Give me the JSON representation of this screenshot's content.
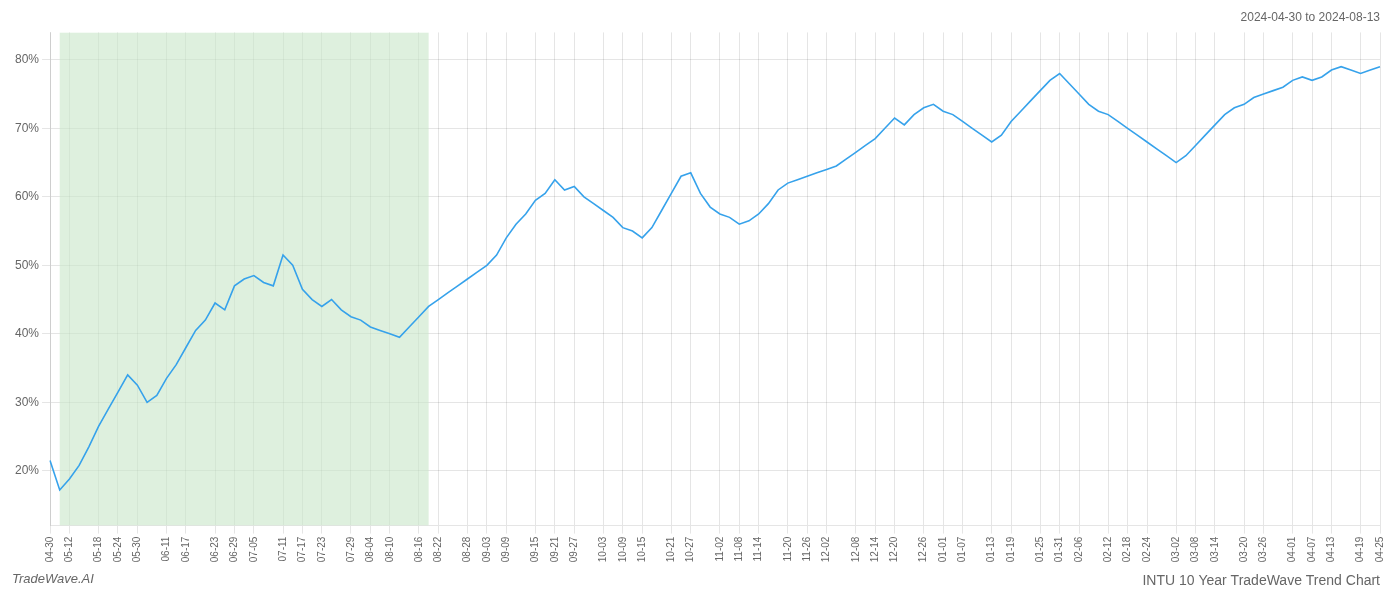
{
  "chart_data": {
    "type": "line",
    "title": "INTU 10 Year TradeWave Trend Chart",
    "subtitle": "2024-04-30 to 2024-08-13",
    "annotations": [
      "TradeWave.AI"
    ],
    "categories": [
      "04-30",
      null,
      "05-12",
      null,
      null,
      "05-18",
      null,
      "05-24",
      null,
      "05-30",
      null,
      null,
      "06-11",
      null,
      "06-17",
      null,
      null,
      "06-23",
      null,
      "06-29",
      null,
      "07-05",
      null,
      null,
      "07-11",
      null,
      "07-17",
      null,
      "07-23",
      null,
      null,
      "07-29",
      null,
      "08-04",
      null,
      "08-10",
      null,
      null,
      "08-16",
      null,
      "08-22",
      null,
      null,
      "08-28",
      null,
      "09-03",
      null,
      "09-09",
      null,
      null,
      "09-15",
      null,
      "09-21",
      null,
      "09-27",
      null,
      null,
      "10-03",
      null,
      "10-09",
      null,
      "10-15",
      null,
      null,
      "10-21",
      null,
      "10-27",
      null,
      null,
      "11-02",
      null,
      "11-08",
      null,
      "11-14",
      null,
      null,
      "11-20",
      null,
      "11-26",
      null,
      "12-02",
      null,
      null,
      "12-08",
      null,
      "12-14",
      null,
      "12-20",
      null,
      null,
      "12-26",
      null,
      "01-01",
      null,
      "01-07",
      null,
      null,
      "01-13",
      null,
      "01-19",
      null,
      null,
      "01-25",
      null,
      "01-31",
      null,
      "02-06",
      null,
      null,
      "02-12",
      null,
      "02-18",
      null,
      "02-24",
      null,
      null,
      "03-02",
      null,
      "03-08",
      null,
      "03-14",
      null,
      null,
      "03-20",
      null,
      "03-26",
      null,
      null,
      "04-01",
      null,
      "04-07",
      null,
      "04-13",
      null,
      null,
      "04-19",
      null,
      "04-25"
    ],
    "values": [
      21.5,
      17.2,
      18.8,
      20.8,
      23.5,
      26.5,
      29.0,
      31.5,
      34.0,
      32.5,
      30.0,
      31.0,
      33.5,
      35.5,
      38.0,
      40.5,
      42.0,
      44.5,
      43.5,
      47.0,
      48.0,
      48.5,
      47.5,
      47.0,
      51.5,
      50.0,
      46.5,
      45.0,
      44.0,
      45.0,
      43.5,
      42.5,
      42.0,
      41.0,
      40.5,
      40.0,
      39.5,
      41.0,
      42.5,
      44.0,
      45.0,
      46.0,
      47.0,
      48.0,
      49.0,
      50.0,
      51.5,
      54.0,
      56.0,
      57.5,
      59.5,
      60.5,
      62.5,
      61.0,
      61.5,
      60.0,
      59.0,
      58.0,
      57.0,
      55.5,
      55.0,
      54.0,
      55.5,
      58.0,
      60.5,
      63.0,
      63.5,
      60.5,
      58.5,
      57.5,
      57.0,
      56.0,
      56.5,
      57.5,
      59.0,
      61.0,
      62.0,
      62.5,
      63.0,
      63.5,
      64.0,
      64.5,
      65.5,
      66.5,
      67.5,
      68.5,
      70.0,
      71.5,
      70.5,
      72.0,
      73.0,
      73.5,
      72.5,
      72.0,
      71.0,
      70.0,
      69.0,
      68.0,
      69.0,
      71.0,
      72.5,
      74.0,
      75.5,
      77.0,
      78.0,
      76.5,
      75.0,
      73.5,
      72.5,
      72.0,
      71.0,
      70.0,
      69.0,
      68.0,
      67.0,
      66.0,
      65.0,
      66.0,
      67.5,
      69.0,
      70.5,
      72.0,
      73.0,
      73.5,
      74.5,
      75.0,
      75.5,
      76.0,
      77.0,
      77.5,
      77.0,
      77.5,
      78.5,
      79.0,
      78.5,
      78.0,
      78.5,
      79.0
    ],
    "shaded_region": {
      "from": "05-12",
      "to": "08-16",
      "color": "#c8e6c8"
    },
    "ylim": [
      12,
      84
    ],
    "yticks": [
      {
        "value": 20,
        "label": "20%"
      },
      {
        "value": 30,
        "label": "30%"
      },
      {
        "value": 40,
        "label": "40%"
      },
      {
        "value": 50,
        "label": "50%"
      },
      {
        "value": 60,
        "label": "60%"
      },
      {
        "value": 70,
        "label": "70%"
      },
      {
        "value": 80,
        "label": "80%"
      }
    ],
    "grid": true
  }
}
